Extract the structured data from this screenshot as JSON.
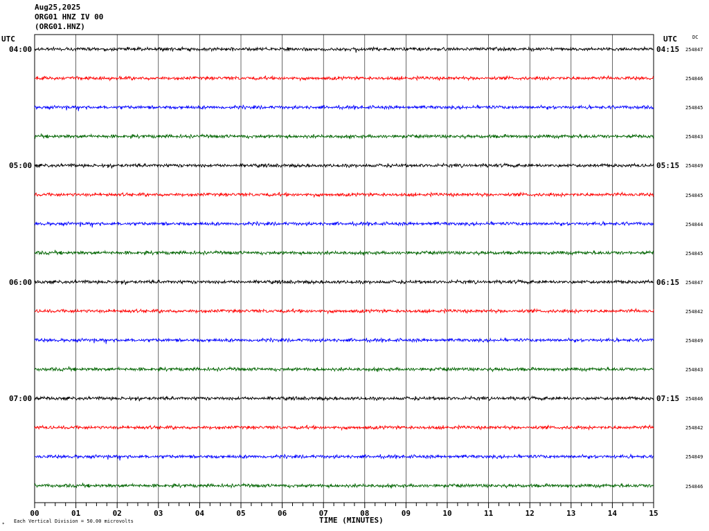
{
  "header": {
    "date": "Aug25,2025",
    "station": "ORG01 HNZ IV 00",
    "code": "(ORG01.HNZ)"
  },
  "left_axis_label": "UTC",
  "right_axis_label": "UTC",
  "dc_label": "DC",
  "footer": {
    "mark": "*",
    "text": "Each Vertical Division =   50.00 microvolts"
  },
  "chart_data": {
    "type": "line",
    "title": "",
    "xlabel": "TIME (MINUTES)",
    "ylabel": "",
    "xlim": [
      0,
      15
    ],
    "x_ticks": [
      "00",
      "01",
      "02",
      "03",
      "04",
      "05",
      "06",
      "07",
      "08",
      "09",
      "10",
      "11",
      "12",
      "13",
      "14",
      "15"
    ],
    "trace_colors": [
      "#000000",
      "#ff0000",
      "#0000ff",
      "#006400"
    ],
    "left_hour_labels": [
      "04:00",
      "05:00",
      "06:00",
      "07:00"
    ],
    "right_hour_labels": [
      "04:15",
      "05:15",
      "06:15",
      "07:15"
    ],
    "trace_dc_values": [
      "254847",
      "254846",
      "254845",
      "254843",
      "254849",
      "254845",
      "254844",
      "254845",
      "254847",
      "254842",
      "254849",
      "254843",
      "254846",
      "254842",
      "254849",
      "254846"
    ],
    "noise_amplitude_divisions": 0.15
  }
}
